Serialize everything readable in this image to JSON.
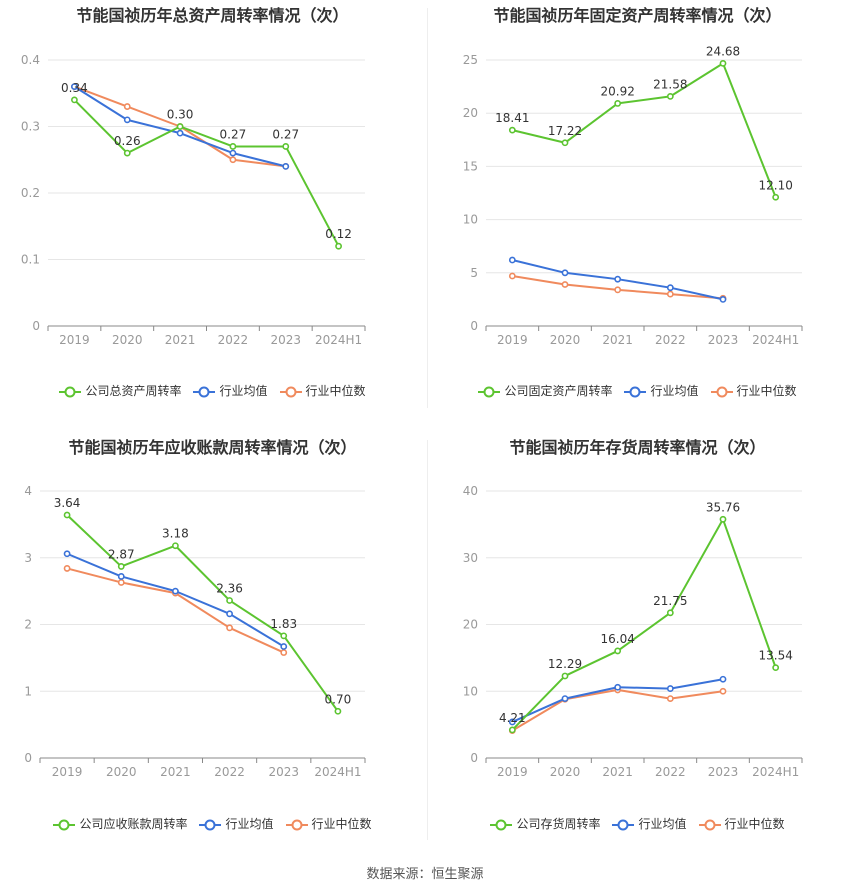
{
  "source_label": "数据来源：恒生聚源",
  "colors": {
    "company": "#5cc430",
    "avg": "#3a72d8",
    "median": "#f08a5d",
    "grid": "#e6e6e6",
    "axis": "#999999",
    "text": "#333333"
  },
  "chart_data": [
    {
      "type": "line",
      "title": "节能国祯历年总资产周转率情况（次）",
      "categories": [
        "2019",
        "2020",
        "2021",
        "2022",
        "2023",
        "2024H1"
      ],
      "yticks": [
        "0",
        "0.1",
        "0.2",
        "0.3",
        "0.4"
      ],
      "ylim": [
        0,
        0.4
      ],
      "series": [
        {
          "name": "公司总资产周转率",
          "key": "company",
          "values": [
            0.34,
            0.26,
            0.3,
            0.27,
            0.27,
            0.12
          ],
          "labels": [
            "0.34",
            "0.26",
            "0.30",
            "0.27",
            "0.27",
            "0.12"
          ]
        },
        {
          "name": "行业均值",
          "key": "avg",
          "values": [
            0.36,
            0.31,
            0.29,
            0.26,
            0.24,
            null
          ]
        },
        {
          "name": "行业中位数",
          "key": "median",
          "values": [
            0.36,
            0.33,
            0.3,
            0.25,
            0.24,
            null
          ]
        }
      ]
    },
    {
      "type": "line",
      "title": "节能国祯历年固定资产周转率情况（次）",
      "categories": [
        "2019",
        "2020",
        "2021",
        "2022",
        "2023",
        "2024H1"
      ],
      "yticks": [
        "0",
        "5",
        "10",
        "15",
        "20",
        "25"
      ],
      "ylim": [
        0,
        25
      ],
      "series": [
        {
          "name": "公司固定资产周转率",
          "key": "company",
          "values": [
            18.41,
            17.22,
            20.92,
            21.58,
            24.68,
            12.1
          ],
          "labels": [
            "18.41",
            "17.22",
            "20.92",
            "21.58",
            "24.68",
            "12.10"
          ]
        },
        {
          "name": "行业均值",
          "key": "avg",
          "values": [
            6.2,
            5.0,
            4.4,
            3.6,
            2.5,
            null
          ]
        },
        {
          "name": "行业中位数",
          "key": "median",
          "values": [
            4.7,
            3.9,
            3.4,
            3.0,
            2.6,
            null
          ]
        }
      ]
    },
    {
      "type": "line",
      "title": "节能国祯历年应收账款周转率情况（次）",
      "categories": [
        "2019",
        "2020",
        "2021",
        "2022",
        "2023",
        "2024H1"
      ],
      "yticks": [
        "0",
        "1",
        "2",
        "3",
        "4"
      ],
      "ylim": [
        0,
        4
      ],
      "series": [
        {
          "name": "公司应收账款周转率",
          "key": "company",
          "values": [
            3.64,
            2.87,
            3.18,
            2.36,
            1.83,
            0.7
          ],
          "labels": [
            "3.64",
            "2.87",
            "3.18",
            "2.36",
            "1.83",
            "0.70"
          ]
        },
        {
          "name": "行业均值",
          "key": "avg",
          "values": [
            3.06,
            2.72,
            2.5,
            2.16,
            1.67,
            null
          ]
        },
        {
          "name": "行业中位数",
          "key": "median",
          "values": [
            2.84,
            2.63,
            2.47,
            1.95,
            1.58,
            null
          ]
        }
      ]
    },
    {
      "type": "line",
      "title": "节能国祯历年存货周转率情况（次）",
      "categories": [
        "2019",
        "2020",
        "2021",
        "2022",
        "2023",
        "2024H1"
      ],
      "yticks": [
        "0",
        "10",
        "20",
        "30",
        "40"
      ],
      "ylim": [
        0,
        40
      ],
      "series": [
        {
          "name": "公司存货周转率",
          "key": "company",
          "values": [
            4.21,
            12.29,
            16.04,
            21.75,
            35.76,
            13.54
          ],
          "labels": [
            "4.21",
            "12.29",
            "16.04",
            "21.75",
            "35.76",
            "13.54"
          ]
        },
        {
          "name": "行业均值",
          "key": "avg",
          "values": [
            5.4,
            8.9,
            10.6,
            10.4,
            11.8,
            null
          ]
        },
        {
          "name": "行业中位数",
          "key": "median",
          "values": [
            4.1,
            8.8,
            10.2,
            8.9,
            10.0,
            null
          ]
        }
      ]
    }
  ]
}
